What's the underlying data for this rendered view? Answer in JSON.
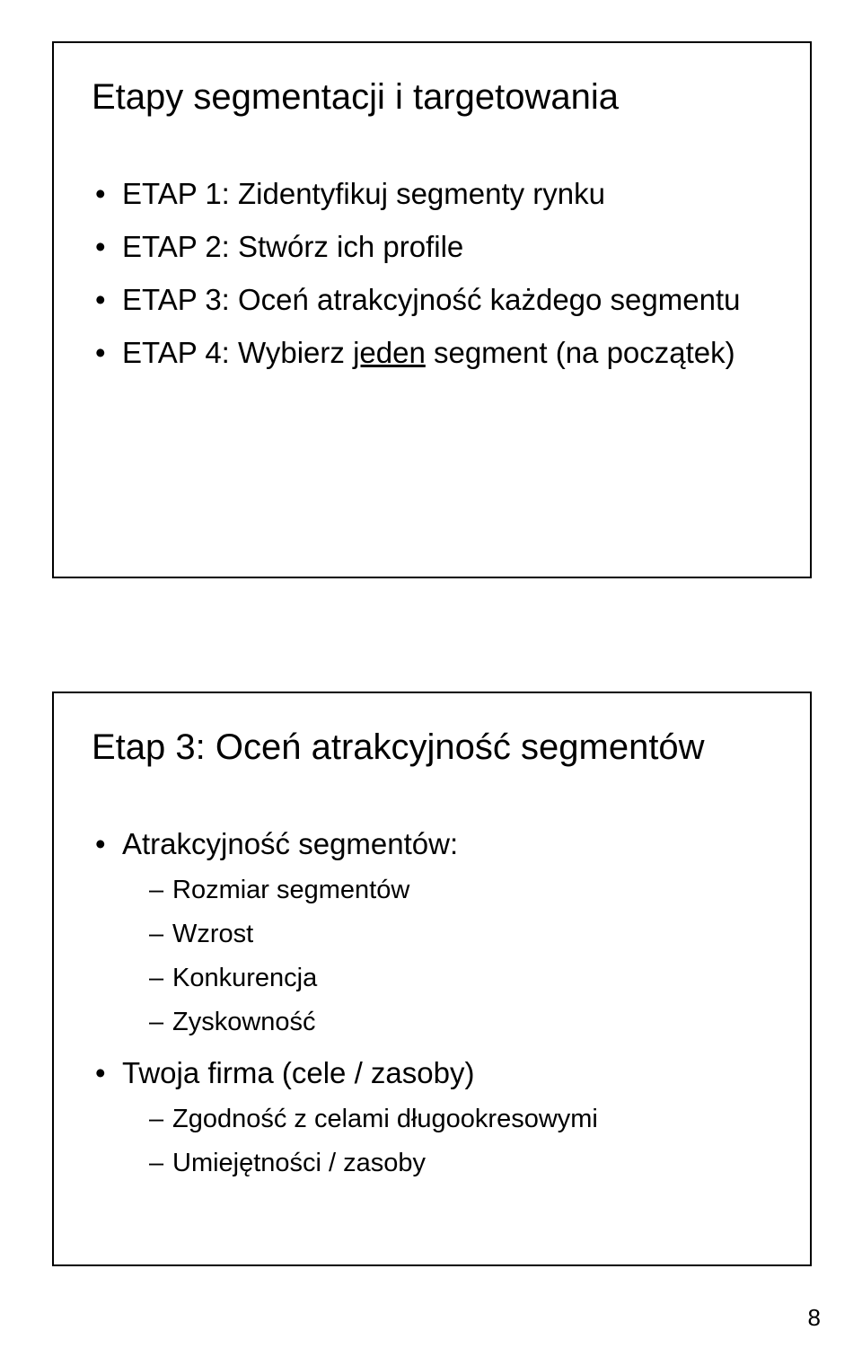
{
  "page_number": "8",
  "colors": {
    "background": "#ffffff",
    "text": "#000000",
    "border": "#000000"
  },
  "typography": {
    "title_fontsize_pt": 30,
    "body_fontsize_pt": 25,
    "sub_fontsize_pt": 22,
    "font_family": "Arial"
  },
  "slides": [
    {
      "title": "Etapy segmentacji i targetowania",
      "bullets": [
        {
          "text": "ETAP 1: Zidentyfikuj segmenty rynku"
        },
        {
          "text": "ETAP 2: Stwórz ich profile"
        },
        {
          "text": "ETAP 3: Oceń atrakcyjność każdego segmentu"
        },
        {
          "prefix": "ETAP 4: Wybierz ",
          "underline": "jeden",
          "suffix": " segment (na początek)"
        }
      ]
    },
    {
      "title": "Etap 3: Oceń atrakcyjność segmentów",
      "bullets": [
        {
          "text": "Atrakcyjność segmentów:",
          "sub": [
            "Rozmiar segmentów",
            "Wzrost",
            "Konkurencja",
            "Zyskowność"
          ]
        },
        {
          "text": "Twoja firma (cele / zasoby)",
          "sub": [
            "Zgodność z celami długookresowymi",
            "Umiejętności / zasoby"
          ]
        }
      ]
    }
  ]
}
